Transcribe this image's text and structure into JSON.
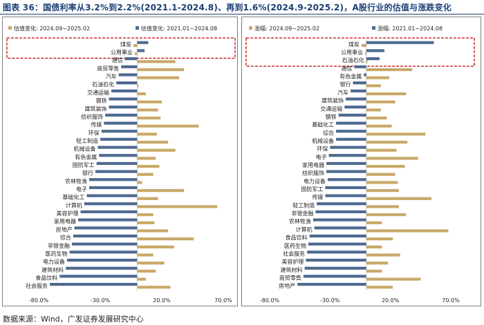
{
  "title": "图表 36：国债利率从3.2%到2.2%(2021.1-2024.8)、再到1.6%(2024.9-2025.2)，A股行业的估值与涨跌变化",
  "source": "数据来源：Wind，广发证券发展研究中心",
  "colors": {
    "series_recent": "#c9a86a",
    "series_prior": "#4e6a8f",
    "highlight_box": "#c00000",
    "title": "#1a3e73"
  },
  "chart_data": [
    {
      "type": "bar",
      "orientation": "horizontal",
      "legend_position": "top",
      "xlim": [
        -80,
        70
      ],
      "xticks": [
        -80,
        -30,
        20,
        70
      ],
      "xtick_labels": [
        "-80.0%",
        "-30.0%",
        "20.0%",
        "70.0%"
      ],
      "highlighted_categories": [
        "煤炭",
        "公用事业"
      ],
      "categories": [
        "煤炭",
        "公用事业",
        "通信",
        "商贸零售",
        "汽车",
        "石油石化",
        "交通运输",
        "钢铁",
        "建筑装饰",
        "纺织服饰",
        "传媒",
        "环保",
        "轻工制造",
        "机械设备",
        "有色金属",
        "国防军工",
        "银行",
        "农林牧渔",
        "电子",
        "基础化工",
        "计算机",
        "美容护理",
        "家用电器",
        "房地产",
        "综合",
        "非银金融",
        "医药生物",
        "电力设备",
        "建筑材料",
        "食品饮料",
        "社会服务"
      ],
      "series": [
        {
          "name": "估值变化：2024.09~2025.02",
          "legend_label": "估值变化:  2024.09~2025.02",
          "values": [
            -3,
            -2,
            31,
            38,
            34,
            1,
            7,
            20,
            17,
            19,
            50,
            16,
            25,
            31,
            15,
            18,
            13,
            4,
            38,
            17,
            65,
            13,
            14,
            25,
            46,
            30,
            13,
            22,
            15,
            7,
            27
          ]
        },
        {
          "name": "估值变化：2021.01~2024.08",
          "legend_label": "估值变化:  2021.01~2024.08",
          "values": [
            9,
            6,
            -10,
            -13,
            -15,
            -17,
            -21,
            -23,
            -23,
            -26,
            -27,
            -29,
            -30,
            -32,
            -31,
            -33,
            -34,
            -39,
            -39,
            -41,
            -43,
            -46,
            -48,
            -51,
            -52,
            -53,
            -55,
            -57,
            -58,
            -63,
            -71
          ]
        }
      ]
    },
    {
      "type": "bar",
      "orientation": "horizontal",
      "legend_position": "top",
      "xlim": [
        -80,
        70
      ],
      "xticks": [
        -80,
        -30,
        20,
        70
      ],
      "xtick_labels": [
        "-80.0%",
        "-30.0%",
        "20.0%",
        "70.0%"
      ],
      "highlighted_categories": [
        "煤炭",
        "公用事业",
        "石油石化"
      ],
      "categories": [
        "煤炭",
        "公用事业",
        "石油石化",
        "通信",
        "有色金属",
        "银行",
        "汽车",
        "建筑装饰",
        "交通运输",
        "钢铁",
        "基础化工",
        "综合",
        "机械设备",
        "环保",
        "电子",
        "家用电器",
        "纺织服饰",
        "电力设备",
        "国防军工",
        "传媒",
        "轻工制造",
        "非银金融",
        "农林牧渔",
        "计算机",
        "食品饮料",
        "医药生物",
        "社会服务",
        "美容护理",
        "建筑材料",
        "商贸零售",
        "房地产"
      ],
      "series": [
        {
          "name": "涨幅：2024.09~2025.02",
          "legend_label": "涨幅:  2024.09~2025.02",
          "values": [
            -4,
            -1,
            1,
            38,
            19,
            12,
            33,
            24,
            12,
            17,
            21,
            49,
            34,
            25,
            43,
            32,
            24,
            26,
            27,
            54,
            27,
            33,
            13,
            68,
            22,
            13,
            28,
            18,
            13,
            45,
            22
          ]
        },
        {
          "name": "涨幅：2021.01~2024.08",
          "legend_label": "涨幅:  2021.01~2024.08",
          "values": [
            56,
            15,
            11,
            -10,
            -2,
            -11,
            -13,
            -17,
            -18,
            -23,
            -25,
            -25,
            -25,
            -30,
            -31,
            -33,
            -33,
            -32,
            -34,
            -34,
            -41,
            -42,
            -44,
            -43,
            -47,
            -48,
            -49,
            -50,
            -51,
            -52,
            -57
          ]
        }
      ]
    }
  ]
}
